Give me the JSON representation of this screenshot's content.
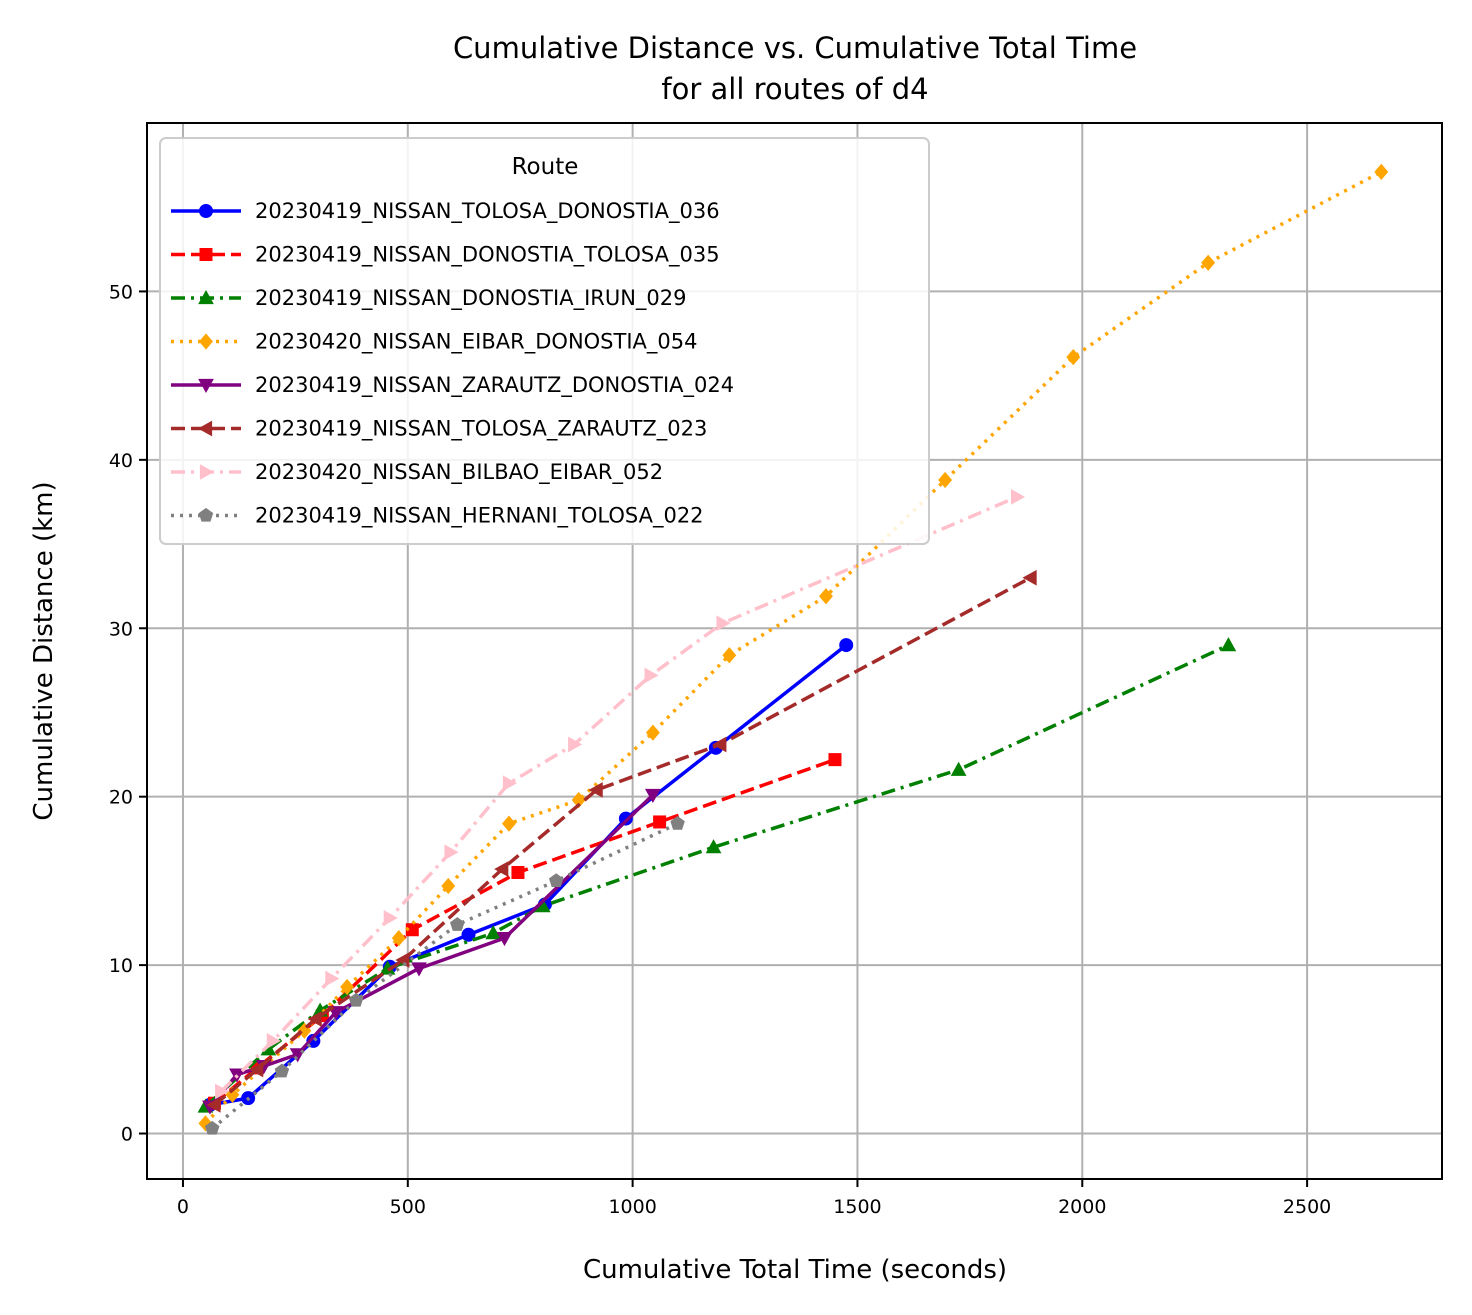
{
  "chart_data": {
    "type": "line",
    "title": "Cumulative Distance vs. Cumulative Total Time",
    "subtitle": "for all routes of d4",
    "xlabel": "Cumulative Total Time (seconds)",
    "ylabel": "Cumulative Distance (km)",
    "xlim": [
      -80,
      2800
    ],
    "ylim": [
      -2.7,
      60
    ],
    "xticks": [
      0,
      500,
      1000,
      1500,
      2000,
      2500
    ],
    "yticks": [
      0,
      10,
      20,
      30,
      40,
      50
    ],
    "xtick_labels": [
      "0",
      "500",
      "1000",
      "1500",
      "2000",
      "2500"
    ],
    "ytick_labels": [
      "0",
      "10",
      "20",
      "30",
      "40",
      "50"
    ],
    "grid": true,
    "legend": {
      "title": "Route",
      "position": "top-left"
    },
    "series": [
      {
        "name": "20230419_NISSAN_TOLOSA_DONOSTIA_036",
        "color": "#0000ff",
        "marker": "circle",
        "linestyle": "solid",
        "x": [
          60,
          145,
          290,
          460,
          635,
          805,
          985,
          1185,
          1475
        ],
        "y": [
          1.7,
          2.1,
          5.5,
          9.9,
          11.8,
          13.6,
          18.7,
          22.9,
          29.0
        ]
      },
      {
        "name": "20230419_NISSAN_DONOSTIA_TOLOSA_035",
        "color": "#ff0000",
        "marker": "square",
        "linestyle": "dashed",
        "x": [
          70,
          165,
          310,
          510,
          745,
          1060,
          1450
        ],
        "y": [
          1.8,
          3.9,
          7.0,
          12.1,
          15.5,
          18.5,
          22.2
        ]
      },
      {
        "name": "20230419_NISSAN_DONOSTIA_IRUN_029",
        "color": "#008000",
        "marker": "triangle-up",
        "linestyle": "dashdot",
        "x": [
          50,
          190,
          305,
          455,
          690,
          800,
          1180,
          1725,
          2325
        ],
        "y": [
          1.6,
          5.0,
          7.3,
          9.8,
          11.9,
          13.5,
          17.0,
          21.6,
          29.0
        ]
      },
      {
        "name": "20230420_NISSAN_EIBAR_DONOSTIA_054",
        "color": "#ffa500",
        "marker": "diamond",
        "linestyle": "dotted",
        "x": [
          50,
          110,
          270,
          365,
          480,
          590,
          725,
          880,
          1045,
          1215,
          1430,
          1695,
          1980,
          2280,
          2665
        ],
        "y": [
          0.6,
          2.3,
          6.1,
          8.7,
          11.6,
          14.7,
          18.4,
          19.8,
          23.8,
          28.4,
          31.9,
          38.8,
          46.1,
          51.7,
          57.1
        ]
      },
      {
        "name": "20230419_NISSAN_ZARAUTZ_DONOSTIA_024",
        "color": "#800080",
        "marker": "triangle-down",
        "linestyle": "solid",
        "x": [
          60,
          120,
          180,
          255,
          340,
          525,
          715,
          1045
        ],
        "y": [
          1.6,
          3.5,
          4.0,
          4.7,
          7.2,
          9.8,
          11.6,
          20.1
        ]
      },
      {
        "name": "20230419_NISSAN_TOLOSA_ZARAUTZ_023",
        "color": "#a52a2a",
        "marker": "triangle-left",
        "linestyle": "dashed",
        "x": [
          70,
          165,
          295,
          490,
          710,
          920,
          1195,
          1885
        ],
        "y": [
          1.7,
          3.8,
          6.8,
          10.3,
          15.7,
          20.4,
          23.1,
          33.0
        ]
      },
      {
        "name": "20230420_NISSAN_BILBAO_EIBAR_052",
        "color": "#ffc0cb",
        "marker": "triangle-right",
        "linestyle": "dashdot",
        "x": [
          85,
          200,
          330,
          460,
          595,
          725,
          870,
          1040,
          1200,
          1855
        ],
        "y": [
          2.5,
          5.5,
          9.2,
          12.8,
          16.7,
          20.8,
          23.1,
          27.2,
          30.3,
          37.8
        ]
      },
      {
        "name": "20230419_NISSAN_HERNANI_TOLOSA_022",
        "color": "#808080",
        "marker": "pentagon",
        "linestyle": "dotted",
        "x": [
          65,
          220,
          385,
          610,
          830,
          1100
        ],
        "y": [
          0.3,
          3.7,
          7.9,
          12.4,
          15.0,
          18.4
        ]
      }
    ]
  }
}
